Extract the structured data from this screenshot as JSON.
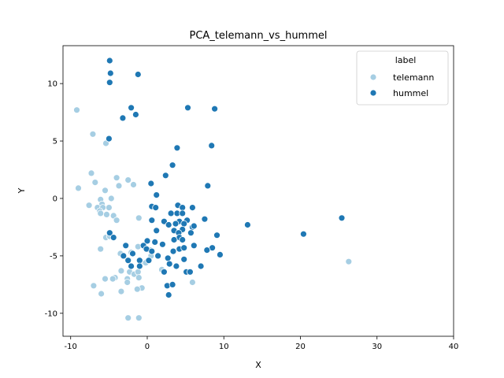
{
  "chart_data": {
    "type": "scatter",
    "title": "PCA_telemann_vs_hummel",
    "xlabel": "X",
    "ylabel": "Y",
    "xlim": [
      -11,
      40
    ],
    "ylim": [
      -12,
      13.3
    ],
    "xticks": [
      -10,
      0,
      10,
      20,
      30,
      40
    ],
    "yticks": [
      -10,
      -5,
      0,
      5,
      10
    ],
    "grid": false,
    "legend": {
      "title": "label",
      "placement": "top-right"
    },
    "series": [
      {
        "name": "telemann",
        "color": "#a6cee3",
        "points": [
          [
            -9.2,
            7.7
          ],
          [
            -7.1,
            5.6
          ],
          [
            -5.4,
            4.8
          ],
          [
            -7.3,
            2.2
          ],
          [
            -6.8,
            1.4
          ],
          [
            -9.0,
            0.9
          ],
          [
            -5.5,
            0.7
          ],
          [
            -4.0,
            1.8
          ],
          [
            -3.7,
            1.1
          ],
          [
            -2.5,
            1.6
          ],
          [
            -1.8,
            1.2
          ],
          [
            -6.1,
            -0.1
          ],
          [
            -4.7,
            0.0
          ],
          [
            -5.9,
            -0.5
          ],
          [
            -7.6,
            -0.6
          ],
          [
            -6.5,
            -0.8
          ],
          [
            -5.8,
            -0.8
          ],
          [
            -5.0,
            -0.8
          ],
          [
            -6.2,
            -1.1
          ],
          [
            -5.3,
            -1.4
          ],
          [
            -4.4,
            -1.5
          ],
          [
            -6.1,
            -1.3
          ],
          [
            -1.1,
            -1.7
          ],
          [
            -4.0,
            -1.9
          ],
          [
            -5.4,
            -3.4
          ],
          [
            -4.9,
            -3.3
          ],
          [
            -6.1,
            -4.4
          ],
          [
            -3.5,
            -4.8
          ],
          [
            -2.1,
            -4.7
          ],
          [
            -1.2,
            -4.2
          ],
          [
            0.4,
            -4.5
          ],
          [
            0.5,
            -5.0
          ],
          [
            -0.8,
            -5.6
          ],
          [
            0.1,
            -5.4
          ],
          [
            -0.2,
            -5.6
          ],
          [
            -2.3,
            -6.4
          ],
          [
            -1.7,
            -6.6
          ],
          [
            -3.4,
            -6.3
          ],
          [
            -1.2,
            -6.4
          ],
          [
            -1.1,
            -6.9
          ],
          [
            -2.6,
            -7.0
          ],
          [
            -4.2,
            -6.9
          ],
          [
            -4.5,
            -7.0
          ],
          [
            -5.5,
            -7.0
          ],
          [
            -2.6,
            -7.3
          ],
          [
            -7.0,
            -7.6
          ],
          [
            -0.7,
            -7.8
          ],
          [
            -1.3,
            -7.9
          ],
          [
            -3.4,
            -8.1
          ],
          [
            -6.0,
            -8.3
          ],
          [
            -2.5,
            -10.4
          ],
          [
            -1.1,
            -10.4
          ],
          [
            1.9,
            -6.2
          ],
          [
            5.9,
            -7.3
          ],
          [
            26.3,
            -5.5
          ]
        ]
      },
      {
        "name": "hummel",
        "color": "#1f78b4",
        "points": [
          [
            -4.9,
            12.0
          ],
          [
            -4.8,
            10.9
          ],
          [
            -4.9,
            10.1
          ],
          [
            -1.2,
            10.8
          ],
          [
            -2.1,
            7.9
          ],
          [
            -3.2,
            7.0
          ],
          [
            -1.5,
            7.3
          ],
          [
            5.3,
            7.9
          ],
          [
            8.8,
            7.8
          ],
          [
            -5.0,
            5.2
          ],
          [
            8.4,
            4.6
          ],
          [
            3.9,
            4.4
          ],
          [
            3.3,
            2.9
          ],
          [
            2.4,
            2.0
          ],
          [
            7.9,
            1.1
          ],
          [
            0.5,
            1.3
          ],
          [
            1.2,
            0.3
          ],
          [
            0.6,
            -0.7
          ],
          [
            1.1,
            -0.8
          ],
          [
            4.0,
            -0.6
          ],
          [
            4.6,
            -0.8
          ],
          [
            5.9,
            -0.8
          ],
          [
            3.9,
            -1.3
          ],
          [
            4.6,
            -1.3
          ],
          [
            3.1,
            -1.3
          ],
          [
            0.6,
            -1.9
          ],
          [
            2.2,
            -2.0
          ],
          [
            4.2,
            -2.0
          ],
          [
            5.2,
            -1.9
          ],
          [
            3.7,
            -2.2
          ],
          [
            4.8,
            -2.2
          ],
          [
            7.5,
            -1.8
          ],
          [
            2.8,
            -2.3
          ],
          [
            5.9,
            -2.5
          ],
          [
            6.1,
            -2.4
          ],
          [
            13.1,
            -2.3
          ],
          [
            25.4,
            -1.7
          ],
          [
            20.4,
            -3.1
          ],
          [
            1.2,
            -2.8
          ],
          [
            3.5,
            -2.8
          ],
          [
            4.6,
            -2.7
          ],
          [
            4.1,
            -3.0
          ],
          [
            -4.9,
            -3.0
          ],
          [
            -4.4,
            -3.4
          ],
          [
            5.7,
            -3.0
          ],
          [
            9.1,
            -3.2
          ],
          [
            4.2,
            -3.4
          ],
          [
            4.6,
            -3.6
          ],
          [
            3.5,
            -3.6
          ],
          [
            0.0,
            -3.7
          ],
          [
            1.0,
            -3.8
          ],
          [
            2.0,
            -4.0
          ],
          [
            4.2,
            -4.4
          ],
          [
            4.8,
            -4.3
          ],
          [
            6.1,
            -4.1
          ],
          [
            8.5,
            -4.3
          ],
          [
            7.8,
            -4.5
          ],
          [
            9.5,
            -4.9
          ],
          [
            -2.8,
            -4.1
          ],
          [
            -0.5,
            -4.1
          ],
          [
            -0.1,
            -4.4
          ],
          [
            -1.9,
            -4.8
          ],
          [
            0.6,
            -4.6
          ],
          [
            3.4,
            -4.6
          ],
          [
            -3.1,
            -5.0
          ],
          [
            1.4,
            -5.0
          ],
          [
            4.8,
            -5.3
          ],
          [
            -2.5,
            -5.4
          ],
          [
            -1.0,
            -5.4
          ],
          [
            2.7,
            -5.2
          ],
          [
            0.2,
            -5.4
          ],
          [
            2.9,
            -5.7
          ],
          [
            3.8,
            -5.9
          ],
          [
            7.0,
            -5.9
          ],
          [
            -2.1,
            -5.9
          ],
          [
            -1.0,
            -5.9
          ],
          [
            2.2,
            -6.4
          ],
          [
            5.1,
            -6.4
          ],
          [
            5.6,
            -6.4
          ],
          [
            2.6,
            -7.6
          ],
          [
            3.3,
            -7.5
          ],
          [
            2.8,
            -8.4
          ]
        ]
      }
    ]
  }
}
